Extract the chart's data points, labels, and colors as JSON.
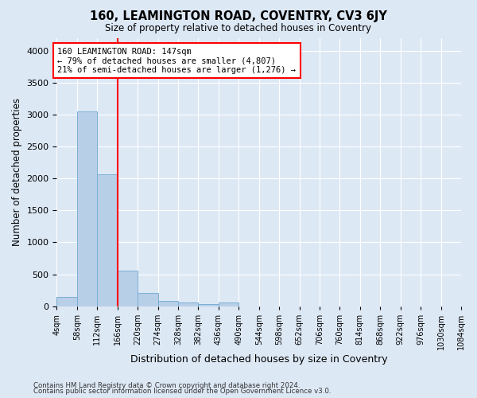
{
  "title": "160, LEAMINGTON ROAD, COVENTRY, CV3 6JY",
  "subtitle": "Size of property relative to detached houses in Coventry",
  "xlabel": "Distribution of detached houses by size in Coventry",
  "ylabel": "Number of detached properties",
  "footer_line1": "Contains HM Land Registry data © Crown copyright and database right 2024.",
  "footer_line2": "Contains public sector information licensed under the Open Government Licence v3.0.",
  "bar_color": "#b8cfe8",
  "bar_edge_color": "#7aafd4",
  "background_color": "#dde8f5",
  "grid_color": "#ffffff",
  "property_line_color": "red",
  "annotation_text": "160 LEAMINGTON ROAD: 147sqm\n← 79% of detached houses are smaller (4,807)\n21% of semi-detached houses are larger (1,276) →",
  "bin_edges": [
    4,
    58,
    112,
    166,
    220,
    274,
    328,
    382,
    436,
    490,
    544,
    598,
    652,
    706,
    760,
    814,
    868,
    922,
    976,
    1030,
    1084
  ],
  "bin_labels": [
    "4sqm",
    "58sqm",
    "112sqm",
    "166sqm",
    "220sqm",
    "274sqm",
    "328sqm",
    "382sqm",
    "436sqm",
    "490sqm",
    "544sqm",
    "598sqm",
    "652sqm",
    "706sqm",
    "760sqm",
    "814sqm",
    "868sqm",
    "922sqm",
    "976sqm",
    "1030sqm",
    "1084sqm"
  ],
  "bar_heights": [
    140,
    3050,
    2060,
    555,
    205,
    80,
    55,
    35,
    55,
    0,
    0,
    0,
    0,
    0,
    0,
    0,
    0,
    0,
    0,
    0
  ],
  "ylim": [
    0,
    4200
  ],
  "yticks": [
    0,
    500,
    1000,
    1500,
    2000,
    2500,
    3000,
    3500,
    4000
  ]
}
